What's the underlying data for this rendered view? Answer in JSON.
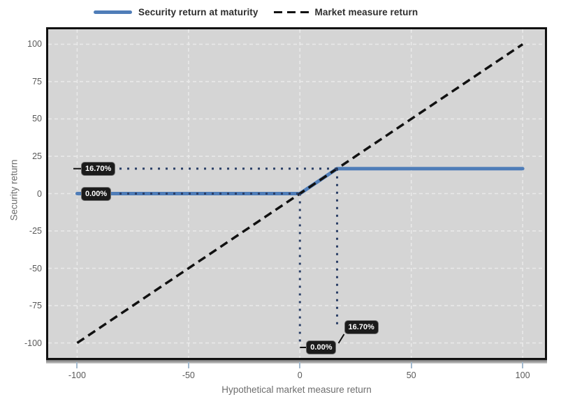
{
  "colors": {
    "series_blue": "#4f7db8",
    "dash_black": "#111111",
    "guide_dot": "#2b3f66",
    "plot_bg": "#d5d5d5",
    "grid": "#e9e9e9",
    "frame": "#111111",
    "tag_bg": "#1b1b1b",
    "tag_text": "#ffffff",
    "tick_text": "#595959",
    "axis_title_text": "#6e6e6e",
    "tick_mark": "#a4bace",
    "connector": "#111111"
  },
  "chart_data": {
    "type": "line",
    "title": "",
    "xlabel": "Hypothetical market measure return",
    "ylabel": "Security return",
    "xlim": [
      -113,
      110
    ],
    "ylim": [
      -110,
      110
    ],
    "xticks": [
      -100,
      -50,
      0,
      50,
      100
    ],
    "yticks": [
      -100,
      -75,
      -50,
      -25,
      0,
      25,
      50,
      75,
      100
    ],
    "grid": true,
    "legend_position": "top",
    "series": [
      {
        "name": "Security return at maturity",
        "style": "solid",
        "color": "#4f7db8",
        "width": 5,
        "points": [
          [
            -100,
            0
          ],
          [
            0,
            0
          ],
          [
            16.7,
            16.7
          ],
          [
            100,
            16.7
          ]
        ]
      },
      {
        "name": "Market measure return",
        "style": "dashed",
        "color": "#111111",
        "width": 3.5,
        "points": [
          [
            -100,
            -100
          ],
          [
            100,
            100
          ]
        ]
      }
    ],
    "guides": [
      {
        "type": "h",
        "y": 16.7,
        "x1": -81,
        "x2": 16.7
      },
      {
        "type": "h",
        "y": 0,
        "x1": -81,
        "x2": 0
      },
      {
        "type": "v",
        "x": 0,
        "y1": 0,
        "y2": -99
      },
      {
        "type": "v",
        "x": 16.7,
        "y1": 16.7,
        "y2": -91
      }
    ],
    "annotations": [
      {
        "id": "cap-left",
        "text": "16.70%",
        "side": "left",
        "y": 16.7
      },
      {
        "id": "zero-left",
        "text": "0.00%",
        "side": "left-noline",
        "y": 0
      },
      {
        "id": "zero-bottom",
        "text": "0.00%",
        "side": "bottom",
        "x": 0
      },
      {
        "id": "cap-bottom",
        "text": "16.70%",
        "side": "bottom-raised",
        "x": 16.7
      }
    ]
  }
}
